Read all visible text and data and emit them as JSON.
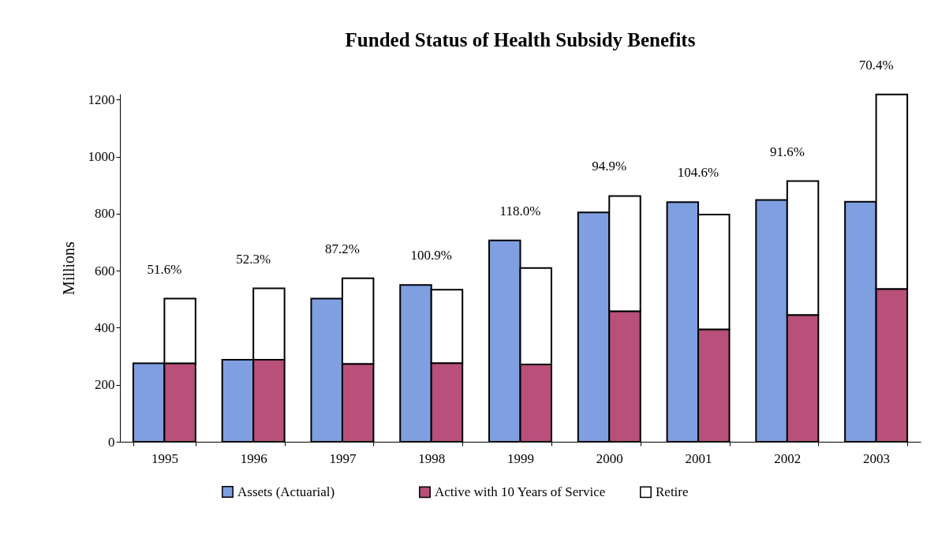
{
  "chart_data": [
    {
      "type": "bar",
      "title": "Funded Status of Health Subsidy Benefits",
      "ylabel": "Millions",
      "categories": [
        "1995",
        "1996",
        "1997",
        "1998",
        "1999",
        "2000",
        "2001",
        "2002",
        "2003"
      ],
      "series": [
        {
          "name": "Assets (Actuarial)",
          "color": "#7f9fe0",
          "values": [
            275,
            288,
            502,
            550,
            706,
            804,
            840,
            848,
            842
          ]
        }
      ],
      "annotations": [
        "51.6%",
        "52.3%",
        "87.2%",
        "100.9%",
        "118.0%",
        "94.9%",
        "104.6%",
        "91.6%",
        "70.4%"
      ],
      "ylim": [
        0,
        1220
      ],
      "yticks": [
        0,
        200,
        400,
        600,
        800,
        1000,
        1200
      ],
      "grid": false,
      "legend": "bottom"
    },
    {
      "type": "bar",
      "categories": [
        "1995",
        "1996",
        "1997",
        "1998",
        "1999",
        "2000",
        "2001",
        "2002",
        "2003"
      ],
      "stacked": true,
      "series": [
        {
          "name": "Active with 10 Years of Service",
          "color": "#b8507a",
          "values": [
            275,
            288,
            273,
            276,
            271,
            458,
            394,
            445,
            536
          ]
        },
        {
          "name": "Retire",
          "color": "#ffffff",
          "values": [
            227,
            250,
            300,
            257,
            338,
            404,
            403,
            469,
            682
          ]
        }
      ],
      "ylim": [
        0,
        1220
      ],
      "tick_labels": false,
      "legend": "bottom"
    }
  ]
}
